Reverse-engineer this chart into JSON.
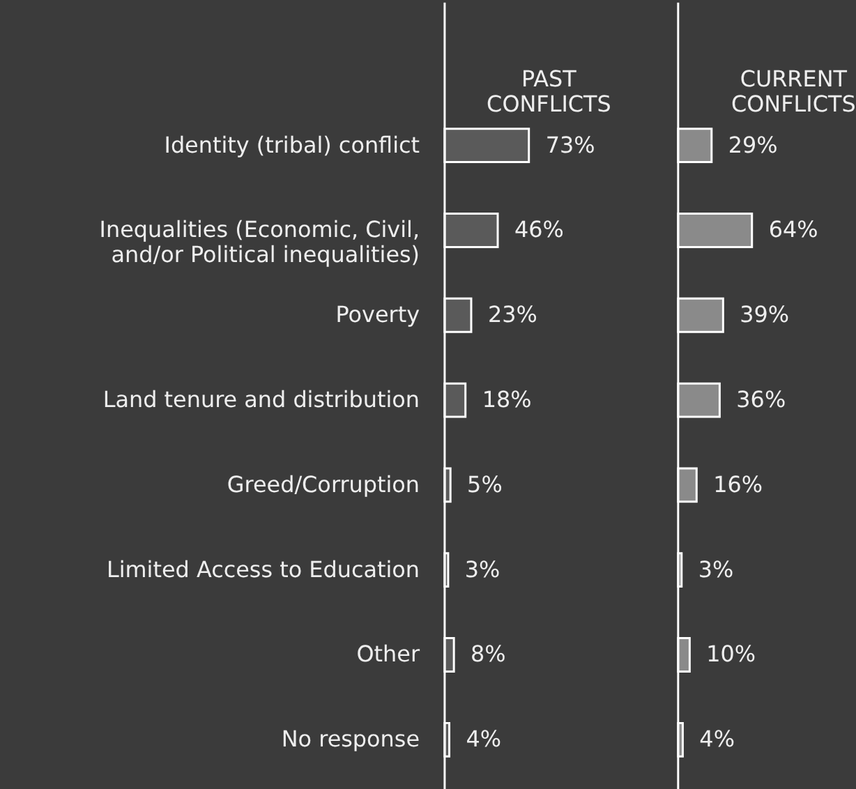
{
  "chart_data": [
    {
      "type": "bar",
      "orientation": "horizontal",
      "categories": [
        "Identity (tribal) conflict",
        "Inequalities (Economic, Civil,\nand/or Political inequalities)",
        "Poverty",
        "Land tenure and distribution",
        "Greed/Corruption",
        "Limited Access to Education",
        "Other",
        "No response"
      ],
      "series": [
        {
          "name": "PAST\nCONFLICTS",
          "color": "#5a5a5a",
          "values": [
            73,
            46,
            23,
            18,
            5,
            3,
            8,
            4
          ],
          "value_labels": [
            "73%",
            "46%",
            "23%",
            "18%",
            "5%",
            "3%",
            "8%",
            "4%"
          ]
        }
      ]
    },
    {
      "type": "bar",
      "orientation": "horizontal",
      "tick_labels": false,
      "categories": [
        null,
        null,
        null,
        null,
        null,
        null,
        null,
        null
      ],
      "series": [
        {
          "name": "CURRENT\nCONFLICTS",
          "color": "#8a8a8a",
          "values": [
            29,
            64,
            39,
            36,
            16,
            3,
            10,
            4
          ],
          "value_labels": [
            "29%",
            "64%",
            "39%",
            "36%",
            "16%",
            "3%",
            "10%",
            "4%"
          ]
        }
      ]
    }
  ]
}
